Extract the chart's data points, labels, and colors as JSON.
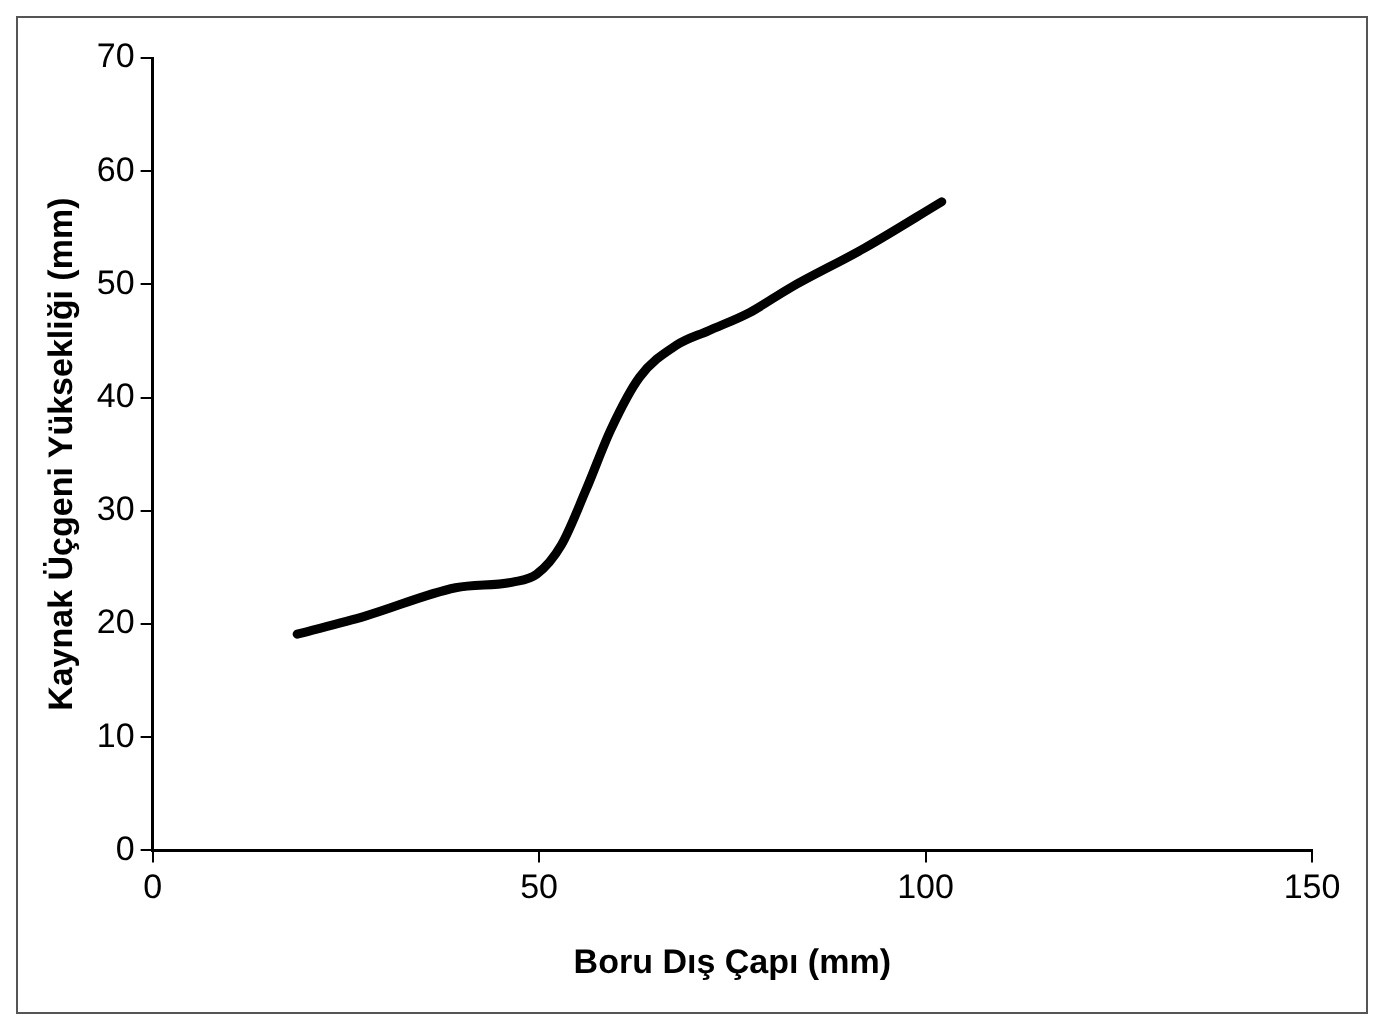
{
  "chart_data": {
    "type": "line",
    "xlabel": "Boru Dış Çapı (mm)",
    "ylabel": "Kaynak Üçgeni Yüksekliği (mm)",
    "x": [
      18.7,
      27.5,
      39.2,
      46.6,
      49.7,
      52.9,
      56.1,
      59.3,
      63,
      67.7,
      71.9,
      77.2,
      82.5,
      92.1,
      102.1
    ],
    "series": [
      {
        "color": "#000000",
        "values": [
          19.1,
          20.7,
          23.2,
          23.7,
          24.4,
          27.0,
          31.9,
          37.2,
          41.8,
          44.6,
          45.9,
          47.5,
          49.7,
          53.2,
          57.3
        ]
      }
    ],
    "xlim": [
      0,
      150
    ],
    "xticks": [
      0,
      50,
      100,
      150
    ],
    "ylim": [
      0,
      70
    ],
    "yticks": [
      0,
      10,
      20,
      30,
      40,
      50,
      60,
      70
    ],
    "grid": false,
    "legend": false,
    "marker": "none",
    "line_style": "solid"
  }
}
